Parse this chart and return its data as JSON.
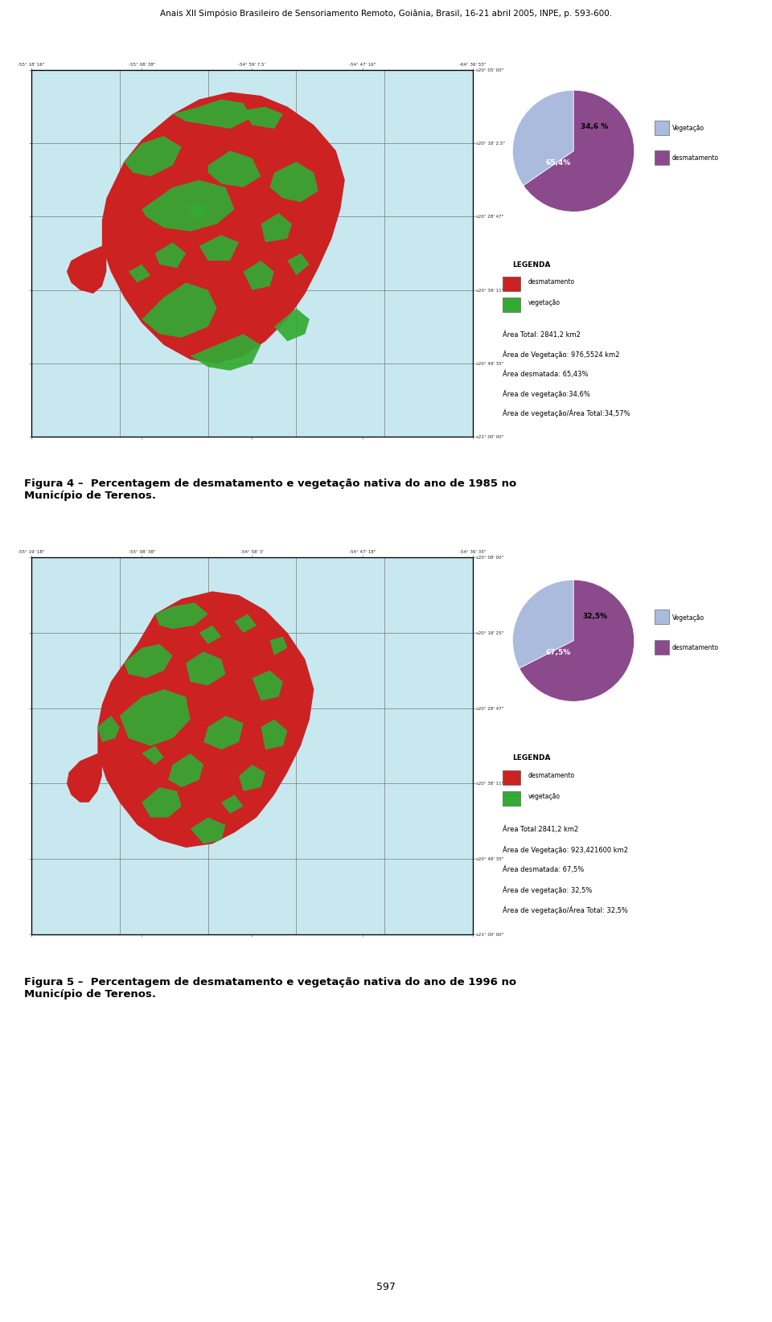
{
  "header_text": "Anais XII Simpósio Brasileiro de Sensoriamento Remoto, Goiânia, Brasil, 16-21 abril 2005, INPE, p. 593-600.",
  "figure4_caption": "Figura 4 –  Percentagem de desmatamento e vegetação nativa do ano de 1985 no\nMunicípio de Terenos.",
  "figure5_caption": "Figura 5 –  Percentagem de desmatamento e vegetação nativa do ano de 1996 no\nMunicípio de Terenos.",
  "page_number": "597",
  "fig4_pie_values": [
    65.4,
    34.6
  ],
  "fig4_pie_labels_inner": [
    "65,4%",
    "34,6 %"
  ],
  "fig4_pie_colors": [
    "#8B4A8B",
    "#AABBDD"
  ],
  "fig4_legend_labels": [
    "Vegetação",
    "desmatamento"
  ],
  "fig4_legend_colors": [
    "#AABBDD",
    "#8B4A8B"
  ],
  "fig4_stats": [
    "Área Total: 2841,2 km2",
    "Área de Vegetação: 976,5524 km2",
    "Área desmatada: 65,43%",
    "Área de vegetação:34,6%",
    "Área de vegetação/Área Total:34,57%"
  ],
  "fig4_legenda_title": "LEGENDA",
  "fig4_legenda_items": [
    "desmatamento",
    "vegetação"
  ],
  "fig4_legenda_colors": [
    "#CC2222",
    "#33AA33"
  ],
  "fig4_xticks": [
    "-55° 18' 16\"",
    "-55° 08' 38\"",
    "-54° 59' 7.5'",
    "-54° 47' 16\"",
    "-64° 36' 55\""
  ],
  "fig4_yticks": [
    "s20° 05' 00\"",
    "s20° 18' 2.5\"",
    "s20° 28' 47\"",
    "s20° 39' 11\"",
    "s20° 49' 35\"",
    "s21° 00' 00\""
  ],
  "fig5_pie_values": [
    67.5,
    32.5
  ],
  "fig5_pie_labels_inner": [
    "67,5%",
    "32,5%"
  ],
  "fig5_pie_colors": [
    "#8B4A8B",
    "#AABBDD"
  ],
  "fig5_legend_labels": [
    "Vegetação",
    "desmatamento"
  ],
  "fig5_legend_colors": [
    "#AABBDD",
    "#8B4A8B"
  ],
  "fig5_stats": [
    "Área Total:2841,2 km2",
    "Área de Vegetação: 923,421600 km2",
    "Área desmatada: 67,5%",
    "Área de vegetação: 32,5%",
    "Área de vegetação/Área Total: 32,5%"
  ],
  "fig5_legenda_title": "LEGENDA",
  "fig5_legenda_items": [
    "desmatamento",
    "vegetação"
  ],
  "fig5_legenda_colors": [
    "#CC2222",
    "#33AA33"
  ],
  "fig5_xticks": [
    "-55° 19' 18\"",
    "-55° 08' 38\"",
    "-54° 58' 3'",
    "-54° 47' 18\"",
    "-54° 36' 35\""
  ],
  "fig5_yticks": [
    "s20° 08' 00\"",
    "s20° 18' 25\"",
    "s20° 28' 47\"",
    "s20° 38' 11\"",
    "s20° 48' 35\"",
    "s21° 00' 00\""
  ],
  "bg_color": "#FFFFFF",
  "map_bg": "#C8E8F0",
  "outer_bg": "#FFFFFF",
  "panel_border": "#000000"
}
